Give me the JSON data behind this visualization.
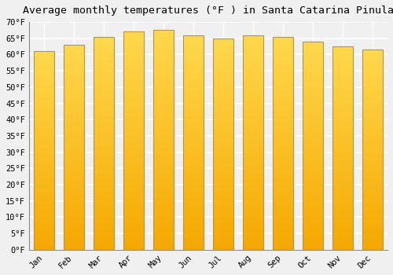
{
  "title": "Average monthly temperatures (°F ) in Santa Catarina Pinula",
  "months": [
    "Jan",
    "Feb",
    "Mar",
    "Apr",
    "May",
    "Jun",
    "Jul",
    "Aug",
    "Sep",
    "Oct",
    "Nov",
    "Dec"
  ],
  "values": [
    61.0,
    63.0,
    65.5,
    67.0,
    67.5,
    66.0,
    65.0,
    66.0,
    65.5,
    64.0,
    62.5,
    61.5
  ],
  "bar_color_bottom": "#F5A800",
  "bar_color_top": "#FFD84D",
  "bar_edge_color": "#C8922A",
  "ylim": [
    0,
    70
  ],
  "ytick_step": 5,
  "background_color": "#f0f0f0",
  "grid_color": "#ffffff",
  "title_fontsize": 9.5,
  "tick_fontsize": 7.5,
  "font_family": "monospace"
}
